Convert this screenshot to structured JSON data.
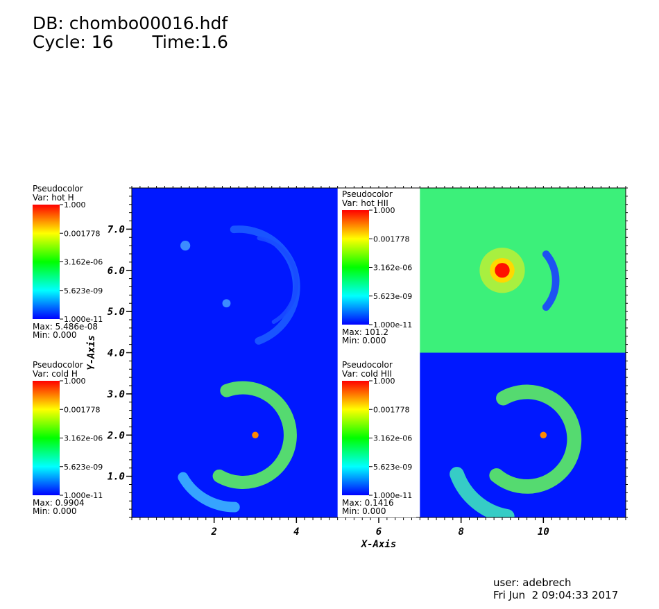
{
  "header": {
    "db_line": "DB: chombo00016.hdf",
    "cycle_label": "Cycle: 16",
    "time_label": "Time:1.6"
  },
  "footer": {
    "user": "user: adebrech",
    "date": "Fri Jun  2 09:04:33 2017"
  },
  "chart_data": {
    "type": "heatmap",
    "xlabel": "X-Axis",
    "ylabel": "Y-Axis",
    "xlim": [
      0,
      12
    ],
    "ylim": [
      0,
      8
    ],
    "x_ticks": [
      2,
      4,
      6,
      8,
      10
    ],
    "x_tick_labels": [
      "2",
      "4",
      "6",
      "8",
      "10"
    ],
    "y_ticks": [
      1,
      2,
      3,
      4,
      5,
      6,
      7
    ],
    "y_tick_labels": [
      "1.0",
      "2.0",
      "3.0",
      "4.0",
      "5.0",
      "6.0",
      "7.0"
    ],
    "colormap": [
      "#0000ff",
      "#00ffff",
      "#00ff00",
      "#ffff00",
      "#ff0000"
    ],
    "panels": [
      {
        "id": "hot-h",
        "var": "hot H",
        "x_range": [
          0,
          5
        ],
        "y_range": [
          4,
          8
        ],
        "background": "#0018ff",
        "features": [
          {
            "kind": "arc",
            "cx": 2.6,
            "cy": 5.6,
            "r": 1.4,
            "from": -70,
            "to": 95,
            "width": 0.18,
            "color": "#1c5cff"
          },
          {
            "kind": "arc",
            "cx": 2.9,
            "cy": 5.7,
            "r": 1.1,
            "from": -60,
            "to": 80,
            "width": 0.1,
            "color": "#1a4cff"
          },
          {
            "kind": "blob",
            "x": 1.3,
            "y": 6.6,
            "r": 0.12,
            "color": "#3c8cff"
          },
          {
            "kind": "blob",
            "x": 2.3,
            "y": 5.2,
            "r": 0.1,
            "color": "#3c8cff"
          }
        ]
      },
      {
        "id": "hot-hii",
        "var": "hot HII",
        "x_range": [
          7,
          12
        ],
        "y_range": [
          4,
          8
        ],
        "background": "#3cf07a",
        "features": [
          {
            "kind": "blob",
            "x": 9.0,
            "y": 6.0,
            "r": 0.55,
            "color": "#a8f040"
          },
          {
            "kind": "blob",
            "x": 9.0,
            "y": 6.0,
            "r": 0.3,
            "color": "#ffd800"
          },
          {
            "kind": "blob",
            "x": 9.0,
            "y": 6.0,
            "r": 0.18,
            "color": "#ff1000"
          },
          {
            "kind": "arc",
            "cx": 9.3,
            "cy": 5.75,
            "r": 1.0,
            "from": -40,
            "to": 40,
            "width": 0.18,
            "color": "#1a40ff"
          }
        ]
      },
      {
        "id": "cold-h",
        "var": "cold H",
        "x_range": [
          0,
          5
        ],
        "y_range": [
          0,
          4
        ],
        "background": "#0018ff",
        "features": [
          {
            "kind": "arc",
            "cx": 2.7,
            "cy": 2.0,
            "r": 1.15,
            "from": -120,
            "to": 110,
            "width": 0.32,
            "color": "#5ef060"
          },
          {
            "kind": "arc",
            "cx": 2.5,
            "cy": 1.7,
            "r": 1.45,
            "from": -150,
            "to": -90,
            "width": 0.25,
            "color": "#3cb4ff"
          },
          {
            "kind": "blob",
            "x": 3.0,
            "y": 2.0,
            "r": 0.08,
            "color": "#ff8800"
          }
        ]
      },
      {
        "id": "cold-hii",
        "var": "cold HII",
        "x_range": [
          7,
          12
        ],
        "y_range": [
          0,
          4
        ],
        "background": "#0018ff",
        "features": [
          {
            "kind": "arc",
            "cx": 9.6,
            "cy": 1.9,
            "r": 1.15,
            "from": -130,
            "to": 120,
            "width": 0.35,
            "color": "#5ef060"
          },
          {
            "kind": "arc",
            "cx": 9.4,
            "cy": 1.6,
            "r": 1.6,
            "from": -160,
            "to": -100,
            "width": 0.35,
            "color": "#3ce0c0"
          },
          {
            "kind": "blob",
            "x": 10.0,
            "y": 2.0,
            "r": 0.08,
            "color": "#ff8800"
          }
        ]
      }
    ],
    "legends": [
      {
        "id": "hot-h",
        "title": "Pseudocolor",
        "var_label": "Var: hot H",
        "ticks": [
          "1.000",
          "0.001778",
          "3.162e-06",
          "5.623e-09",
          "1.000e-11"
        ],
        "max_label": "Max:  5.486e-08",
        "min_label": "Min:  0.000"
      },
      {
        "id": "hot-hii",
        "title": "Pseudocolor",
        "var_label": "Var: hot HII",
        "ticks": [
          "1.000",
          "0.001778",
          "3.162e-06",
          "5.623e-09",
          "1.000e-11"
        ],
        "max_label": "Max:  101.2",
        "min_label": "Min:  0.000"
      },
      {
        "id": "cold-h",
        "title": "Pseudocolor",
        "var_label": "Var: cold H",
        "ticks": [
          "1.000",
          "0.001778",
          "3.162e-06",
          "5.623e-09",
          "1.000e-11"
        ],
        "max_label": "Max:  0.9904",
        "min_label": "Min:  0.000"
      },
      {
        "id": "cold-hii",
        "title": "Pseudocolor",
        "var_label": "Var: cold HII",
        "ticks": [
          "1.000",
          "0.001778",
          "3.162e-06",
          "5.623e-09",
          "1.000e-11"
        ],
        "max_label": "Max:  0.1416",
        "min_label": "Min:  0.000"
      }
    ]
  }
}
